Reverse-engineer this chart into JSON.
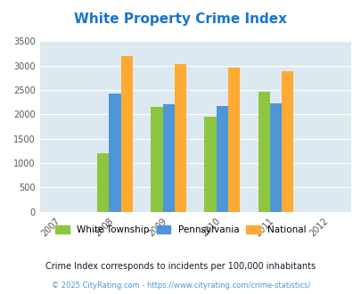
{
  "title": "White Property Crime Index",
  "years": [
    2008,
    2009,
    2010,
    2011
  ],
  "x_ticks": [
    2007,
    2008,
    2009,
    2010,
    2011,
    2012
  ],
  "white_township": [
    1200,
    2150,
    1950,
    2460
  ],
  "pennsylvania": [
    2430,
    2200,
    2170,
    2220
  ],
  "national": [
    3200,
    3030,
    2950,
    2890
  ],
  "color_white": "#8DC63F",
  "color_pa": "#4D96D9",
  "color_national": "#FFAA33",
  "bg_color": "#DDE9F0",
  "ylim": [
    0,
    3500
  ],
  "yticks": [
    0,
    500,
    1000,
    1500,
    2000,
    2500,
    3000,
    3500
  ],
  "legend_labels": [
    "White Township",
    "Pennsylvania",
    "National"
  ],
  "note": "Crime Index corresponds to incidents per 100,000 inhabitants",
  "copyright": "© 2025 CityRating.com - https://www.cityrating.com/crime-statistics/",
  "title_color": "#1874CD",
  "note_color": "#1a1a2e",
  "copyright_color": "#4D96D9",
  "bar_width": 0.22
}
